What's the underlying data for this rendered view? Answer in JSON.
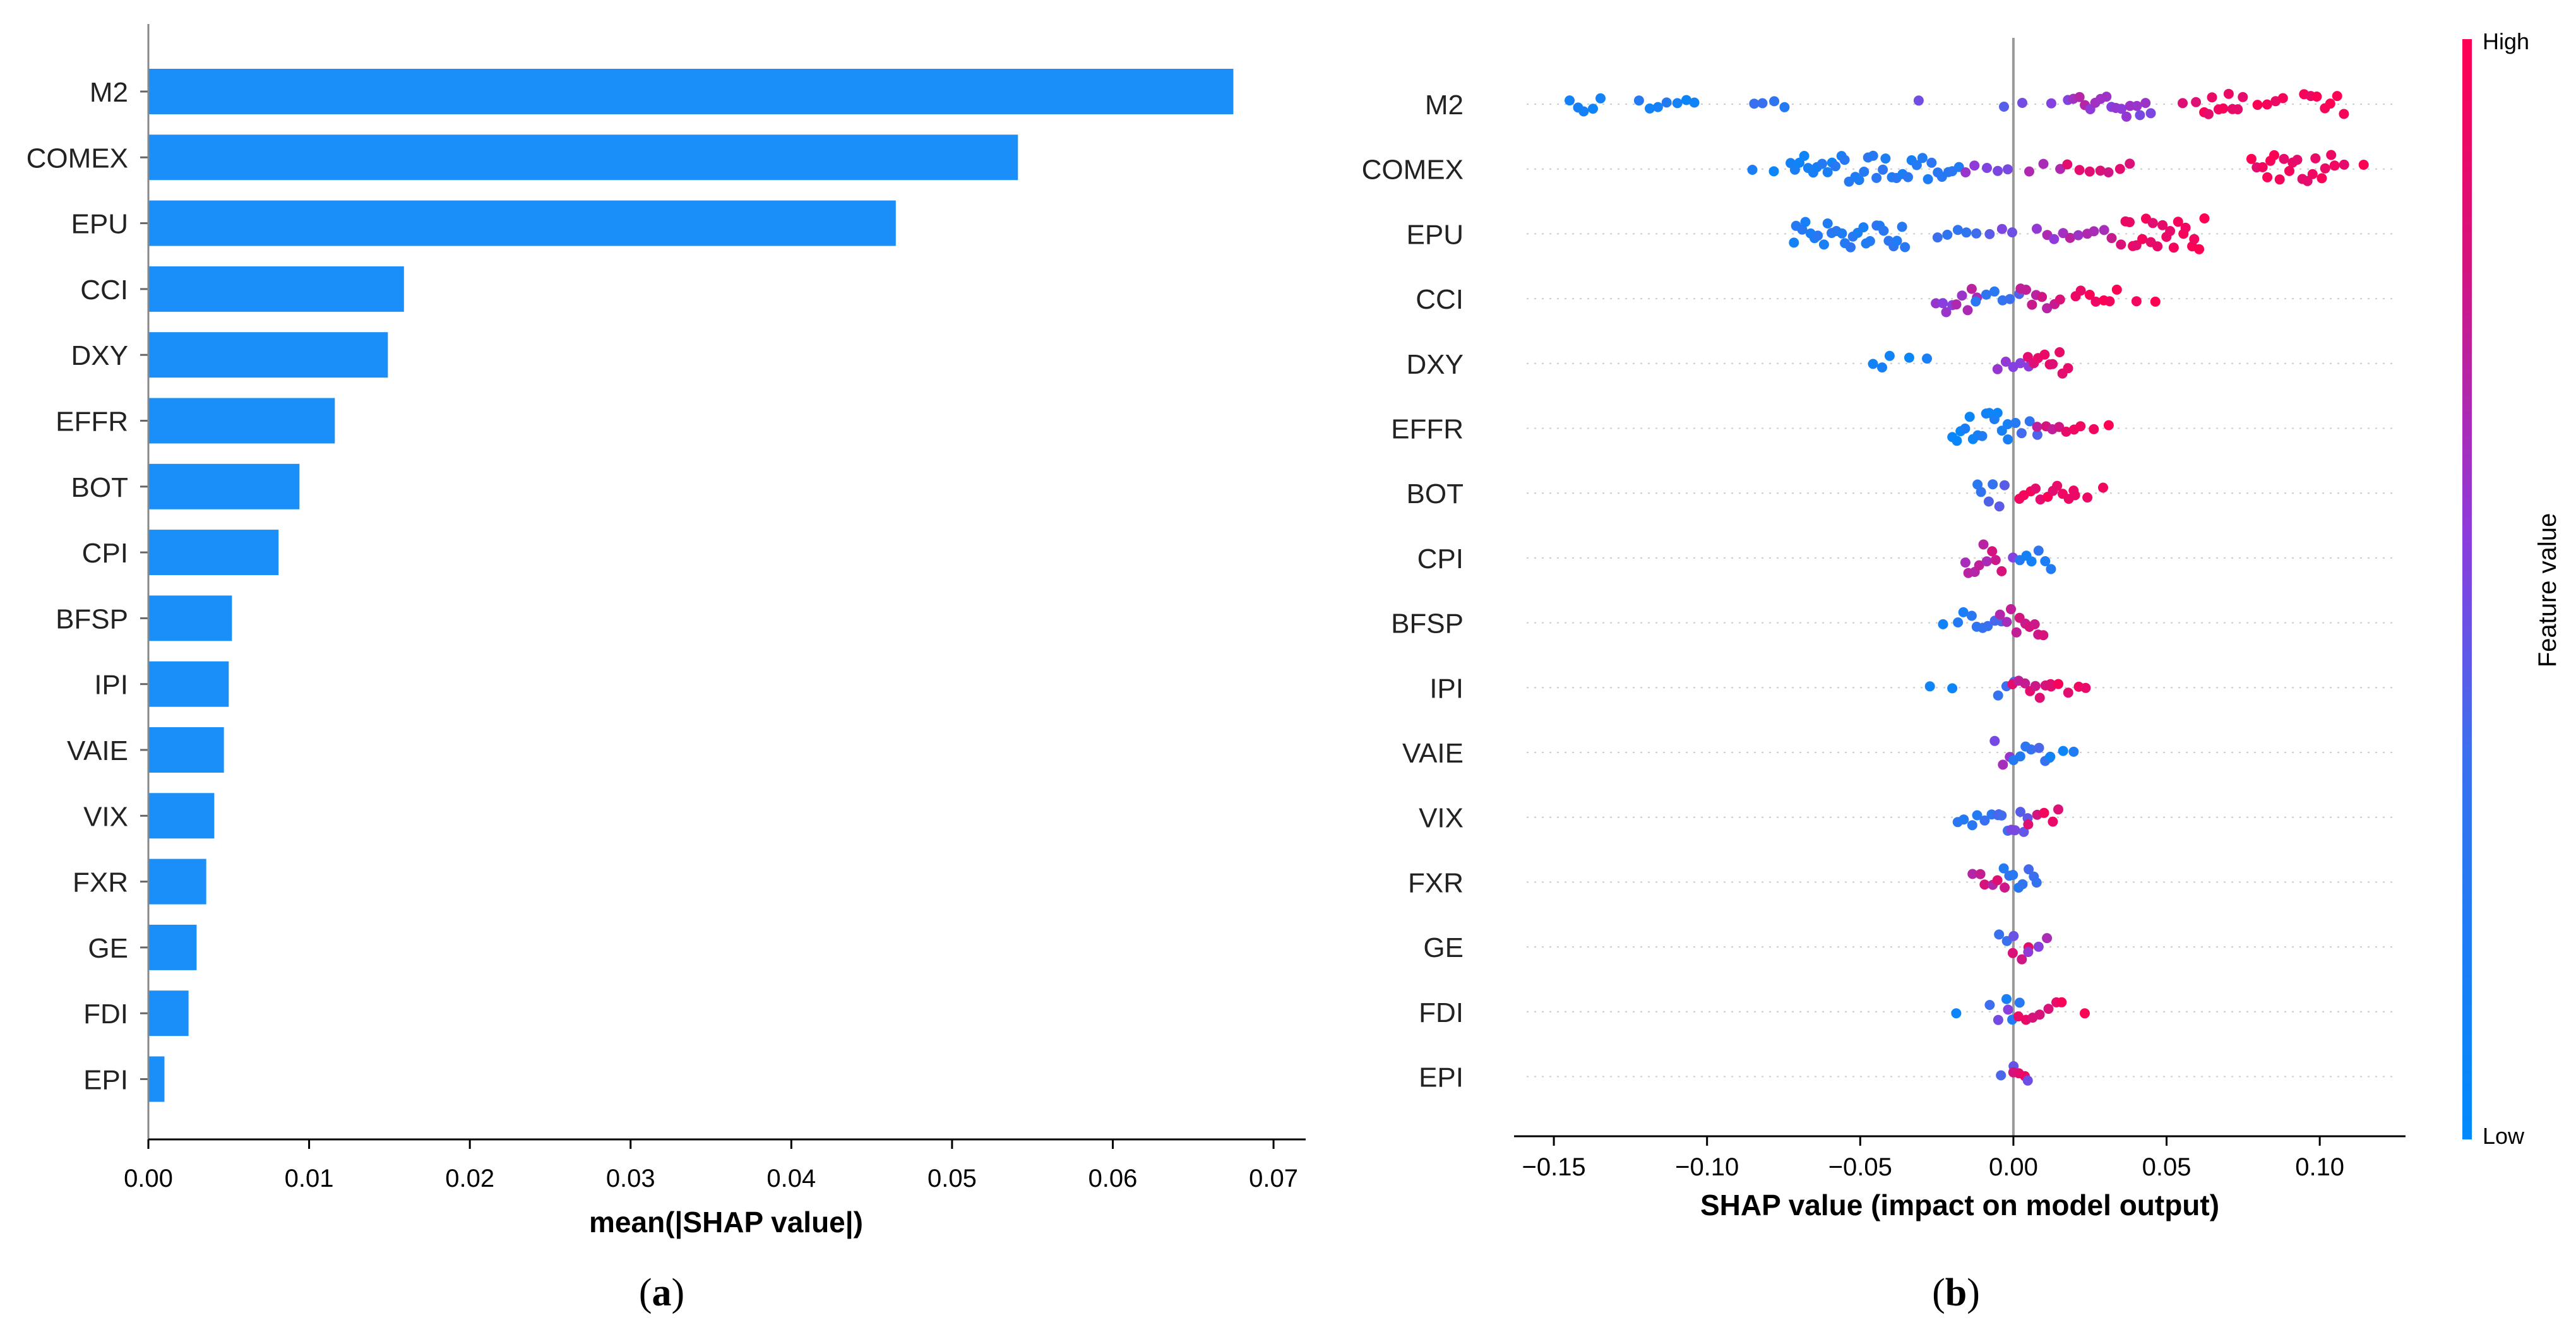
{
  "panels": {
    "a_label": "a",
    "b_label": "b"
  },
  "colors": {
    "bar": "#1a8ff9",
    "low": "#008afb",
    "high": "#ff0052",
    "mid": "#8c3cdd",
    "axis": "#000000",
    "zero_line": "#999999"
  },
  "chart_data": [
    {
      "type": "bar",
      "orientation": "horizontal",
      "xlabel": "mean(|SHAP value|)",
      "ylabel": "",
      "xlim": [
        0,
        0.072
      ],
      "xticks": [
        0.0,
        0.01,
        0.02,
        0.03,
        0.04,
        0.05,
        0.06,
        0.07
      ],
      "xtick_labels": [
        "0.00",
        "0.01",
        "0.02",
        "0.03",
        "0.04",
        "0.05",
        "0.06",
        "0.07"
      ],
      "categories": [
        "M2",
        "COMEX",
        "EPU",
        "CCI",
        "DXY",
        "EFFR",
        "BOT",
        "CPI",
        "BFSP",
        "IPI",
        "VAIE",
        "VIX",
        "FXR",
        "GE",
        "FDI",
        "EPI"
      ],
      "values": [
        0.0675,
        0.0541,
        0.0465,
        0.0159,
        0.0149,
        0.0116,
        0.0094,
        0.0081,
        0.0052,
        0.005,
        0.0047,
        0.0041,
        0.0036,
        0.003,
        0.0025,
        0.001
      ]
    },
    {
      "type": "scatter",
      "subtype": "beeswarm",
      "xlabel": "SHAP value (impact on model output)",
      "ylabel": "",
      "xlim": [
        -0.163,
        0.128
      ],
      "xticks": [
        -0.15,
        -0.1,
        -0.05,
        0.0,
        0.05,
        0.1
      ],
      "xtick_labels": [
        "−0.15",
        "−0.10",
        "−0.05",
        "0.00",
        "0.05",
        "0.10"
      ],
      "colorbar": {
        "label": "Feature value",
        "high_label": "High",
        "low_label": "Low"
      },
      "categories": [
        "M2",
        "COMEX",
        "EPU",
        "CCI",
        "DXY",
        "EFFR",
        "BOT",
        "CPI",
        "BFSP",
        "IPI",
        "VAIE",
        "VIX",
        "FXR",
        "GE",
        "FDI",
        "EPI"
      ],
      "series": [
        {
          "name": "M2",
          "clusters": [
            [
              -0.145,
              -0.135,
              0.1,
              0.1,
              0.9
            ],
            [
              -0.122,
              -0.104,
              0.18,
              0.1,
              0.4
            ],
            [
              -0.085,
              -0.075,
              0.3,
              0.25,
              0.6
            ],
            [
              -0.032,
              -0.03,
              0.5,
              0.4,
              0.1
            ],
            [
              -0.003,
              0.003,
              0.45,
              0.5,
              0.4
            ],
            [
              0.012,
              0.018,
              0.6,
              0.5,
              0.3
            ],
            [
              0.02,
              0.045,
              0.65,
              0.55,
              1.4
            ],
            [
              0.055,
              0.06,
              0.85,
              0.8,
              0.3
            ],
            [
              0.062,
              0.075,
              0.9,
              0.9,
              1.6
            ],
            [
              0.08,
              0.088,
              0.92,
              0.9,
              0.7
            ],
            [
              0.095,
              0.108,
              0.95,
              1.0,
              1.0
            ]
          ]
        },
        {
          "name": "COMEX",
          "clusters": [
            [
              -0.085,
              -0.078,
              0.1,
              0.1,
              0.2
            ],
            [
              -0.073,
              -0.04,
              0.12,
              0.22,
              1.6
            ],
            [
              -0.038,
              -0.018,
              0.2,
              0.25,
              1.4
            ],
            [
              -0.016,
              -0.002,
              0.55,
              0.5,
              0.3
            ],
            [
              0.005,
              0.015,
              0.7,
              0.7,
              0.3
            ],
            [
              0.018,
              0.038,
              0.8,
              0.8,
              0.3
            ],
            [
              0.078,
              0.105,
              0.92,
              0.95,
              1.7
            ],
            [
              0.108,
              0.114,
              0.95,
              1.0,
              0.2
            ]
          ]
        },
        {
          "name": "EPU",
          "clusters": [
            [
              -0.072,
              -0.035,
              0.15,
              0.25,
              1.7
            ],
            [
              -0.025,
              -0.012,
              0.35,
              0.35,
              0.3
            ],
            [
              -0.008,
              0.0,
              0.5,
              0.5,
              0.2
            ],
            [
              0.008,
              0.032,
              0.6,
              0.7,
              0.5
            ],
            [
              0.035,
              0.062,
              0.88,
              0.95,
              1.9
            ]
          ]
        },
        {
          "name": "CCI",
          "clusters": [
            [
              -0.025,
              -0.012,
              0.55,
              0.65,
              1.7
            ],
            [
              -0.012,
              0.002,
              0.2,
              0.4,
              0.7
            ],
            [
              0.002,
              0.015,
              0.7,
              0.75,
              1.2
            ],
            [
              0.02,
              0.034,
              0.95,
              0.95,
              0.9
            ],
            [
              0.04,
              0.046,
              0.95,
              1.0,
              0.1
            ]
          ]
        },
        {
          "name": "DXY",
          "clusters": [
            [
              -0.046,
              -0.04,
              0.05,
              0.1,
              0.6
            ],
            [
              -0.034,
              -0.028,
              0.05,
              0.1,
              0.4
            ],
            [
              -0.005,
              0.005,
              0.65,
              0.55,
              0.7
            ],
            [
              0.005,
              0.018,
              0.85,
              0.95,
              1.5
            ]
          ]
        },
        {
          "name": "EFFR",
          "clusters": [
            [
              -0.02,
              -0.002,
              0.1,
              0.15,
              1.9
            ],
            [
              -0.002,
              0.008,
              0.2,
              0.4,
              0.7
            ],
            [
              0.008,
              0.02,
              0.7,
              0.85,
              1.0
            ],
            [
              0.022,
              0.031,
              0.9,
              1.0,
              0.2
            ]
          ]
        },
        {
          "name": "BOT",
          "clusters": [
            [
              -0.012,
              -0.003,
              0.3,
              0.4,
              1.7
            ],
            [
              0.002,
              0.02,
              0.9,
              0.95,
              1.2
            ],
            [
              0.02,
              0.029,
              0.9,
              1.0,
              0.3
            ]
          ]
        },
        {
          "name": "CPI",
          "clusters": [
            [
              -0.016,
              -0.004,
              0.65,
              0.75,
              1.8
            ],
            [
              -0.002,
              0.002,
              0.6,
              0.5,
              0.3
            ],
            [
              0.002,
              0.012,
              0.15,
              0.25,
              1.4
            ]
          ]
        },
        {
          "name": "BFSP",
          "clusters": [
            [
              -0.023,
              -0.018,
              0.1,
              0.2,
              0.2
            ],
            [
              -0.016,
              -0.004,
              0.2,
              0.35,
              1.2
            ],
            [
              -0.004,
              0.01,
              0.7,
              0.8,
              1.6
            ]
          ]
        },
        {
          "name": "IPI",
          "clusters": [
            [
              -0.027,
              -0.02,
              0.05,
              0.1,
              0.2
            ],
            [
              -0.005,
              0.0,
              0.3,
              0.4,
              1.3
            ],
            [
              0.0,
              0.012,
              0.8,
              0.85,
              1.4
            ],
            [
              0.012,
              0.024,
              0.9,
              0.95,
              0.5
            ]
          ]
        },
        {
          "name": "VAIE",
          "clusters": [
            [
              -0.006,
              -0.001,
              0.55,
              0.65,
              1.5
            ],
            [
              0.0,
              0.012,
              0.25,
              0.35,
              1.1
            ],
            [
              0.012,
              0.02,
              0.1,
              0.15,
              0.3
            ]
          ]
        },
        {
          "name": "VIX",
          "clusters": [
            [
              -0.018,
              -0.005,
              0.2,
              0.3,
              1.1
            ],
            [
              -0.005,
              0.005,
              0.4,
              0.5,
              1.9
            ],
            [
              0.005,
              0.015,
              0.85,
              0.9,
              0.8
            ]
          ]
        },
        {
          "name": "FXR",
          "clusters": [
            [
              -0.013,
              -0.003,
              0.7,
              0.8,
              1.1
            ],
            [
              -0.003,
              0.008,
              0.2,
              0.35,
              1.8
            ]
          ]
        },
        {
          "name": "GE",
          "clusters": [
            [
              -0.005,
              0.0,
              0.3,
              0.4,
              1.4
            ],
            [
              0.0,
              0.005,
              0.8,
              0.85,
              1.6
            ],
            [
              0.005,
              0.011,
              0.55,
              0.6,
              0.9
            ]
          ]
        },
        {
          "name": "FDI",
          "clusters": [
            [
              -0.02,
              -0.018,
              0.1,
              0.1,
              0.1
            ],
            [
              -0.008,
              -0.002,
              0.4,
              0.5,
              1.0
            ],
            [
              -0.002,
              0.002,
              0.2,
              0.3,
              1.6
            ],
            [
              0.002,
              0.016,
              0.85,
              0.9,
              1.0
            ],
            [
              0.022,
              0.024,
              0.95,
              1.0,
              0.1
            ]
          ]
        },
        {
          "name": "EPI",
          "clusters": [
            [
              -0.004,
              0.0,
              0.4,
              0.5,
              1.1
            ],
            [
              0.0,
              0.004,
              0.85,
              0.9,
              1.7
            ],
            [
              0.004,
              0.006,
              0.5,
              0.6,
              0.3
            ]
          ]
        }
      ]
    }
  ]
}
